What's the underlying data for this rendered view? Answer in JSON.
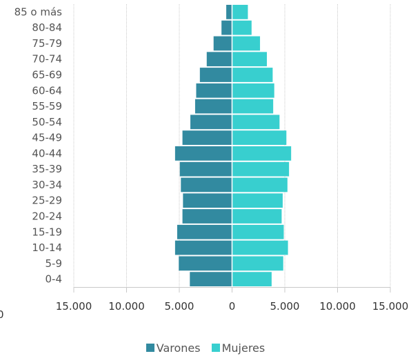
{
  "chart_data": {
    "type": "bar",
    "orientation": "horizontal",
    "categories": [
      "85 o más",
      "80-84",
      "75-79",
      "70-74",
      "65-69",
      "60-64",
      "55-59",
      "50-54",
      "45-49",
      "40-44",
      "35-39",
      "30-34",
      "25-29",
      "20-24",
      "15-19",
      "10-14",
      "5-9",
      "0-4"
    ],
    "series": [
      {
        "name": "Varones",
        "color": "#328aa0",
        "values": [
          550,
          1000,
          1750,
          2400,
          3050,
          3400,
          3500,
          3950,
          4700,
          5400,
          4950,
          4850,
          4650,
          4700,
          5200,
          5400,
          5050,
          4000
        ]
      },
      {
        "name": "Mujeres",
        "color": "#38cfcf",
        "values": [
          1500,
          1850,
          2650,
          3300,
          3850,
          4000,
          3900,
          4500,
          5150,
          5600,
          5400,
          5250,
          4800,
          4700,
          4900,
          5300,
          4850,
          3750
        ]
      }
    ],
    "xlim": [
      -15000,
      15000
    ],
    "xticks": [
      -15000,
      -10000,
      -5000,
      0,
      5000,
      10000,
      15000
    ],
    "xtick_labels": [
      "15.000",
      "10.000",
      "5.000",
      "0",
      "5.000",
      "10.000",
      "15.000"
    ],
    "edge_tick_label": "0",
    "grid": "vertical",
    "legend": "bottom-center"
  },
  "legend": {
    "varones": "Varones",
    "mujeres": "Mujeres",
    "varones_color": "#328aa0",
    "mujeres_color": "#38cfcf"
  }
}
